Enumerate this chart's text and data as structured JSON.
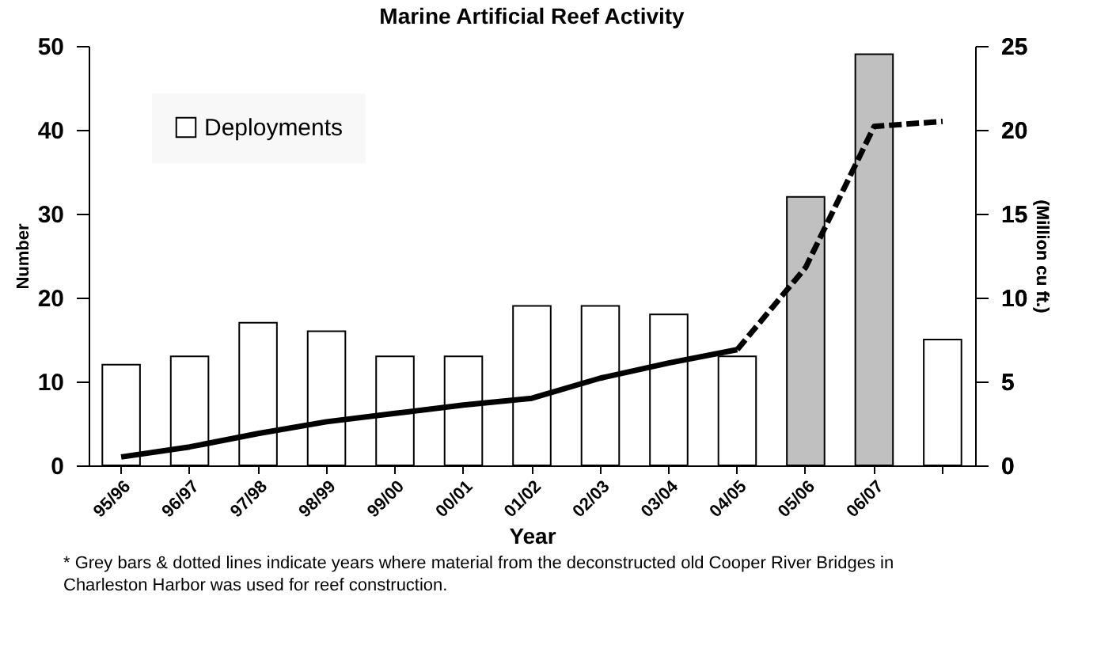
{
  "chart_data": {
    "type": "bar",
    "title": "Marine Artificial Reef Activity",
    "xlabel": "Year",
    "ylabel": "Number",
    "y2label": "(Million cu ft.)",
    "categories": [
      "95/96",
      "96/97",
      "97/98",
      "98/99",
      "99/00",
      "00/01",
      "01/02",
      "02/03",
      "03/04",
      "04/05",
      "05/06",
      "06/07",
      null
    ],
    "series": [
      {
        "name": "Deployments",
        "colors": [
          "#ffffff",
          "#ffffff",
          "#ffffff",
          "#ffffff",
          "#ffffff",
          "#ffffff",
          "#ffffff",
          "#ffffff",
          "#ffffff",
          "#ffffff",
          "#c0c0c0",
          "#c0c0c0",
          "#ffffff"
        ],
        "values": [
          12,
          13,
          17,
          16,
          13,
          13,
          19,
          19,
          18,
          13,
          32,
          49,
          15
        ]
      },
      {
        "type": "line",
        "axis": "y2",
        "color": "#000000",
        "line_style": "solid",
        "values": [
          0.5,
          1.1,
          1.9,
          2.6,
          3.1,
          3.6,
          4.0,
          5.2,
          6.1,
          6.9,
          null,
          null,
          null
        ]
      },
      {
        "type": "line",
        "axis": "y2",
        "color": "#000000",
        "line_style": "dashed",
        "values": [
          null,
          null,
          null,
          null,
          null,
          null,
          null,
          null,
          null,
          6.9,
          11.8,
          20.2,
          20.5
        ]
      }
    ],
    "ylim": [
      0,
      50
    ],
    "yticks": [
      0,
      10,
      20,
      30,
      40,
      50
    ],
    "y2lim": [
      0,
      25
    ],
    "y2ticks": [
      0,
      5,
      10,
      15,
      20,
      25
    ],
    "grid": false,
    "legend": "top left",
    "annotations": [
      "* Grey bars & dotted lines indicate years where material from the deconstructed old Cooper River Bridges in Charleston Harbor was used for reef construction."
    ]
  }
}
